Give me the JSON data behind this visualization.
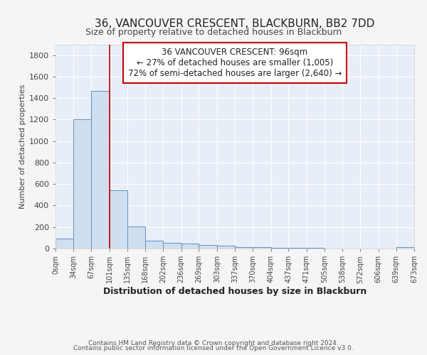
{
  "title": "36, VANCOUVER CRESCENT, BLACKBURN, BB2 7DD",
  "subtitle": "Size of property relative to detached houses in Blackburn",
  "xlabel": "Distribution of detached houses by size in Blackburn",
  "ylabel": "Number of detached properties",
  "footnote1": "Contains HM Land Registry data © Crown copyright and database right 2024.",
  "footnote2": "Contains public sector information licensed under the Open Government Licence v3.0.",
  "bar_edges": [
    0,
    34,
    67,
    101,
    135,
    168,
    202,
    236,
    269,
    303,
    337,
    370,
    404,
    437,
    471,
    505,
    538,
    572,
    606,
    639,
    673
  ],
  "bar_heights": [
    90,
    1200,
    1470,
    540,
    205,
    70,
    50,
    45,
    30,
    25,
    15,
    10,
    5,
    5,
    5,
    0,
    0,
    0,
    0,
    15
  ],
  "bar_color": "#d0dff0",
  "bar_edgecolor": "#6090c0",
  "bg_color": "#e8eef8",
  "grid_color": "#ffffff",
  "red_line_x": 101,
  "annotation_text": "36 VANCOUVER CRESCENT: 96sqm\n← 27% of detached houses are smaller (1,005)\n72% of semi-detached houses are larger (2,640) →",
  "annotation_box_color": "#ffffff",
  "annotation_box_edgecolor": "#cc0000",
  "ylim": [
    0,
    1900
  ],
  "xlim": [
    0,
    673
  ],
  "fig_bg": "#f5f5f5"
}
